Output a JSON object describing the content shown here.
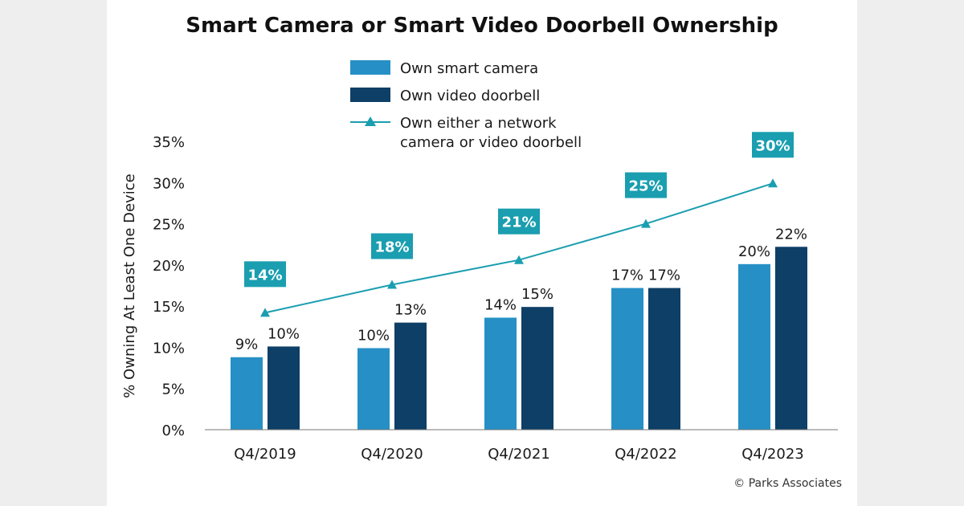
{
  "chart_data": {
    "type": "bar",
    "title": "Smart Camera or Smart Video Doorbell Ownership",
    "ylabel": "% Owning At Least One Device",
    "xlabel": "",
    "categories": [
      "Q4/2019",
      "Q4/2020",
      "Q4/2021",
      "Q4/2022",
      "Q4/2023"
    ],
    "ylim": [
      0,
      35
    ],
    "yticks": [
      0,
      5,
      10,
      15,
      20,
      25,
      30,
      35
    ],
    "ytick_labels": [
      "0%",
      "5%",
      "10%",
      "15%",
      "20%",
      "25%",
      "30%",
      "35%"
    ],
    "grid": false,
    "legend_position": "top",
    "series": [
      {
        "name": "Own smart camera",
        "type": "bar",
        "color": "#2690c6",
        "values": [
          9,
          10,
          14,
          17,
          20
        ],
        "plotted_values": [
          8.8,
          9.9,
          13.6,
          17.2,
          20.1
        ],
        "labels": [
          "9%",
          "10%",
          "14%",
          "17%",
          "20%"
        ]
      },
      {
        "name": "Own video doorbell",
        "type": "bar",
        "color": "#0e3f66",
        "values": [
          10,
          13,
          15,
          17,
          22
        ],
        "plotted_values": [
          10.1,
          13.0,
          14.9,
          17.2,
          22.2
        ],
        "labels": [
          "10%",
          "13%",
          "15%",
          "17%",
          "22%"
        ]
      },
      {
        "name": "Own either a network camera or video doorbell",
        "name_lines": [
          "Own either a network",
          "camera or video doorbell"
        ],
        "type": "line",
        "marker": "triangle",
        "color": "#1a9eb0",
        "values": [
          14,
          18,
          21,
          25,
          30
        ],
        "plotted_values": [
          14.2,
          17.6,
          20.6,
          25.0,
          29.9
        ],
        "labels": [
          "14%",
          "18%",
          "21%",
          "25%",
          "30%"
        ]
      }
    ],
    "credit": "© Parks Associates"
  }
}
